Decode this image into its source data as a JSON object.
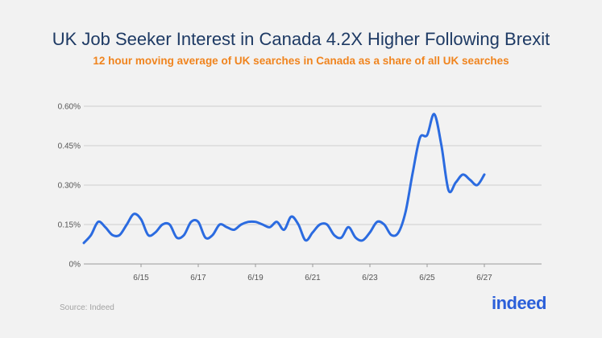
{
  "title": "UK Job Seeker Interest in Canada 4.2X Higher Following Brexit",
  "subtitle": "12 hour moving average of UK searches in Canada as a share of all UK searches",
  "source": "Source: Indeed",
  "logo_text": "indeed",
  "colors": {
    "line": "#2b6be0",
    "title": "#1e3a64",
    "subtitle": "#f0841e",
    "logo": "#2b5fd9"
  },
  "chart_data": {
    "type": "line",
    "x_unit": "date (2016)",
    "xlim": [
      "6/13",
      "6/29"
    ],
    "x_ticks": [
      "6/15",
      "6/17",
      "6/19",
      "6/21",
      "6/23",
      "6/25",
      "6/27"
    ],
    "y_ticks": [
      "0%",
      "0.15%",
      "0.30%",
      "0.45%",
      "0.60%"
    ],
    "y_tick_values": [
      0,
      0.15,
      0.3,
      0.45,
      0.6
    ],
    "ylim": [
      0,
      0.6
    ],
    "ylabel": "",
    "grid": true,
    "series": [
      {
        "x": [
          "6/13 00:00",
          "6/13 06:00",
          "6/13 12:00",
          "6/13 18:00",
          "6/14 00:00",
          "6/14 06:00",
          "6/14 12:00",
          "6/14 18:00",
          "6/15 00:00",
          "6/15 06:00",
          "6/15 12:00",
          "6/15 18:00",
          "6/16 00:00",
          "6/16 06:00",
          "6/16 12:00",
          "6/16 18:00",
          "6/17 00:00",
          "6/17 06:00",
          "6/17 12:00",
          "6/17 18:00",
          "6/18 00:00",
          "6/18 06:00",
          "6/18 12:00",
          "6/18 18:00",
          "6/19 00:00",
          "6/19 06:00",
          "6/19 12:00",
          "6/19 18:00",
          "6/20 00:00",
          "6/20 06:00",
          "6/20 12:00",
          "6/20 18:00",
          "6/21 00:00",
          "6/21 06:00",
          "6/21 12:00",
          "6/21 18:00",
          "6/22 00:00",
          "6/22 06:00",
          "6/22 12:00",
          "6/22 18:00",
          "6/23 00:00",
          "6/23 06:00",
          "6/23 12:00",
          "6/23 18:00",
          "6/24 00:00",
          "6/24 06:00",
          "6/24 12:00",
          "6/24 18:00",
          "6/25 00:00",
          "6/25 06:00",
          "6/25 12:00",
          "6/25 18:00",
          "6/26 00:00",
          "6/26 06:00",
          "6/26 12:00",
          "6/26 18:00",
          "6/27 00:00"
        ],
        "y": [
          0.08,
          0.11,
          0.16,
          0.14,
          0.11,
          0.11,
          0.15,
          0.19,
          0.17,
          0.11,
          0.12,
          0.15,
          0.15,
          0.1,
          0.11,
          0.16,
          0.16,
          0.1,
          0.11,
          0.15,
          0.14,
          0.13,
          0.15,
          0.16,
          0.16,
          0.15,
          0.14,
          0.16,
          0.13,
          0.18,
          0.15,
          0.09,
          0.12,
          0.15,
          0.15,
          0.11,
          0.1,
          0.14,
          0.1,
          0.09,
          0.12,
          0.16,
          0.15,
          0.11,
          0.12,
          0.2,
          0.35,
          0.48,
          0.49,
          0.57,
          0.45,
          0.28,
          0.31,
          0.34,
          0.32,
          0.3,
          0.34
        ]
      }
    ]
  }
}
